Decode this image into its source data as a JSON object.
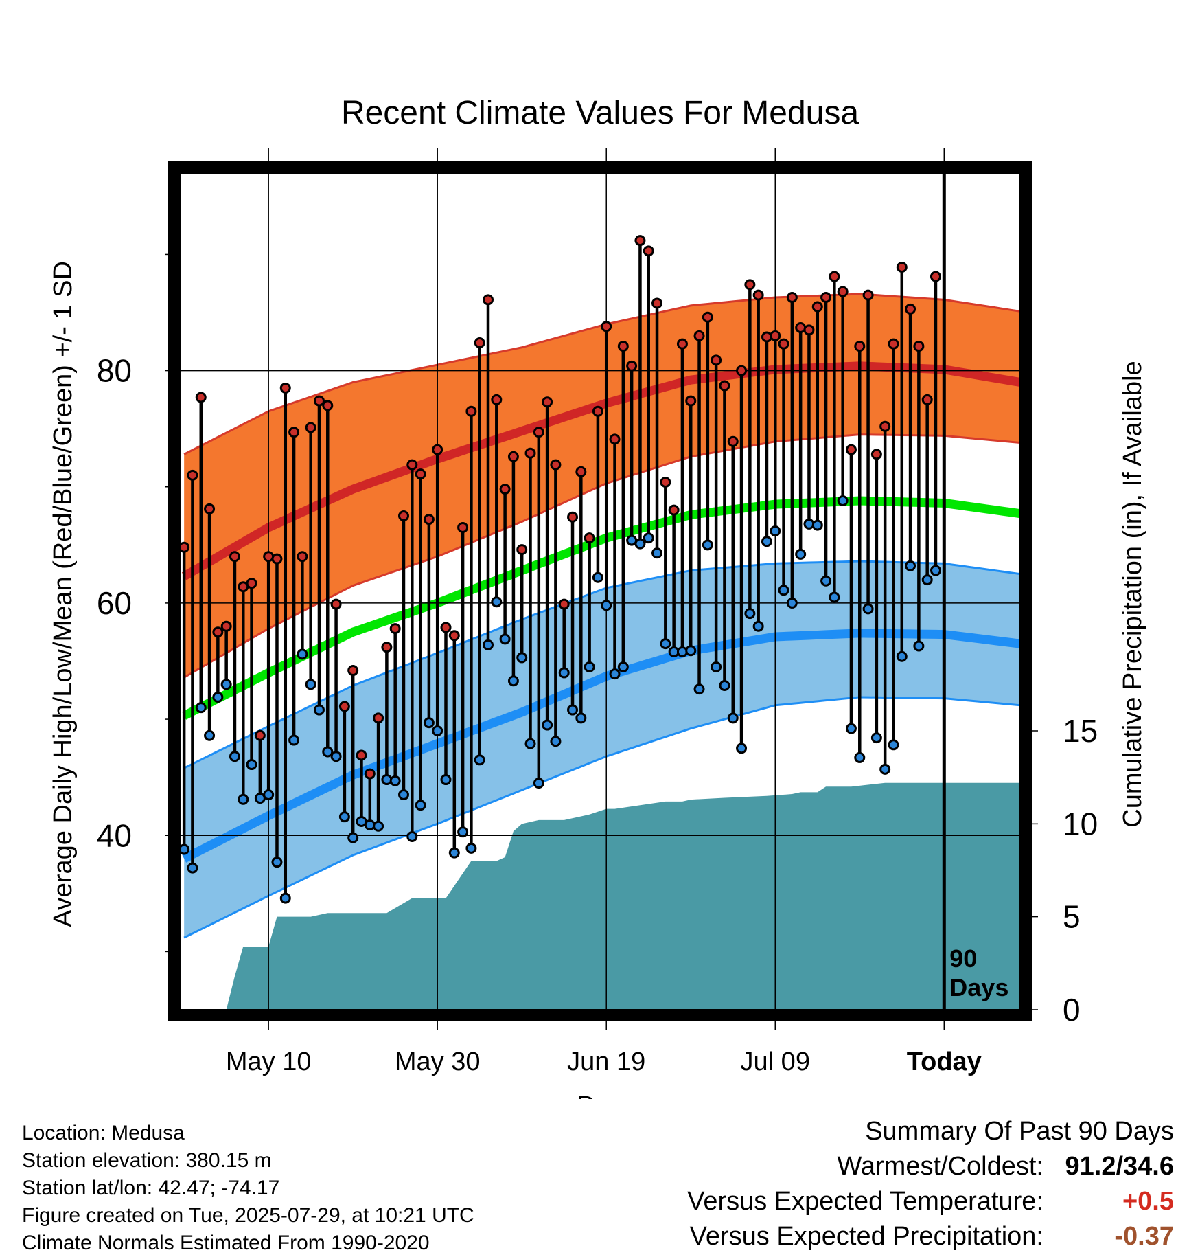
{
  "chart_data": {
    "type": "line",
    "title": "Recent Climate Values For Medusa",
    "xlabel": "Day",
    "ylabel": "Average Daily High/Low/Mean (Red/Blue/Green) +/- 1 SD",
    "y2label": "Cumulative Precipitation (in), If Available",
    "ylim": [
      25,
      97
    ],
    "y2lim": [
      0,
      45
    ],
    "xlim": [
      -90.5,
      9
    ],
    "x_units": "days relative to today (2025-07-29)",
    "y_ticks": [
      40,
      60,
      80
    ],
    "y2_ticks": [
      0,
      5,
      10,
      15
    ],
    "x_ticks": [
      {
        "x": -80,
        "label": "May 10"
      },
      {
        "x": -60,
        "label": "May 30"
      },
      {
        "x": -40,
        "label": "Jun 19"
      },
      {
        "x": -20,
        "label": "Jul 09"
      },
      {
        "x": 0,
        "label": "Today"
      }
    ],
    "today_marker": "90 Days",
    "colors": {
      "high_band": "#f4772e",
      "high_mean": "#d02626",
      "high_band_edge": "#d63a2b",
      "low_band": "#86c1e8",
      "low_mean": "#1e8ef5",
      "low_band_edge": "#1e8ef5",
      "mean": "#00e600",
      "precip": "#4a9aa5",
      "high_dot": "#c82f2a",
      "low_dot": "#2b85d8",
      "stem": "#000000"
    },
    "normals": {
      "x": [
        -90,
        -80,
        -70,
        -60,
        -50,
        -40,
        -30,
        -20,
        -10,
        0,
        9
      ],
      "high_mean": [
        62.3,
        66.5,
        69.8,
        72.4,
        74.8,
        77.2,
        79.2,
        80.1,
        80.4,
        80.1,
        79.0
      ],
      "high_sd_upper": [
        72.8,
        76.5,
        79.0,
        80.5,
        82.0,
        84.0,
        85.6,
        86.3,
        86.6,
        86.1,
        85.1
      ],
      "high_sd_lower": [
        53.6,
        57.8,
        61.5,
        64.0,
        67.0,
        70.3,
        72.6,
        73.9,
        74.5,
        74.4,
        73.8
      ],
      "mean": [
        50.3,
        54.0,
        57.5,
        60.0,
        62.8,
        65.6,
        67.6,
        68.5,
        68.8,
        68.6,
        67.7
      ],
      "low_mean": [
        38.0,
        41.7,
        45.2,
        47.9,
        50.6,
        53.7,
        55.9,
        57.1,
        57.4,
        57.3,
        56.5
      ],
      "low_sd_upper": [
        45.8,
        49.4,
        52.9,
        55.7,
        58.6,
        61.3,
        62.8,
        63.4,
        63.6,
        63.4,
        62.5
      ],
      "low_sd_lower": [
        31.2,
        34.8,
        38.3,
        41.0,
        43.9,
        46.8,
        49.2,
        51.2,
        51.9,
        51.8,
        51.2
      ]
    },
    "series": [
      {
        "name": "High",
        "x_start": -90,
        "values": [
          64.8,
          71.0,
          77.7,
          68.1,
          57.5,
          58.0,
          64.0,
          61.4,
          61.7,
          48.6,
          64.0,
          63.8,
          78.5,
          74.7,
          64.0,
          75.1,
          77.4,
          77.0,
          59.9,
          51.1,
          54.2,
          46.9,
          45.3,
          50.1,
          56.2,
          57.8,
          67.5,
          71.9,
          71.1,
          67.2,
          73.2,
          57.9,
          57.2,
          66.5,
          76.5,
          82.4,
          86.1,
          77.5,
          69.8,
          72.6,
          64.6,
          72.9,
          74.7,
          77.3,
          71.9,
          59.9,
          67.4,
          71.3,
          65.6,
          76.5,
          83.8,
          74.1,
          82.1,
          80.4,
          91.2,
          90.3,
          85.8,
          70.4,
          68.0,
          82.3,
          77.4,
          83.0,
          84.6,
          80.9,
          78.7,
          73.9,
          80.0,
          87.4,
          86.5,
          82.9,
          83.0,
          82.3,
          86.3,
          83.7,
          83.5,
          85.5,
          86.3,
          88.1,
          86.8,
          73.2,
          82.1,
          86.5,
          72.8,
          75.2,
          82.3,
          88.9,
          85.3,
          82.1,
          77.5,
          88.1
        ]
      },
      {
        "name": "Low",
        "x_start": -90,
        "values": [
          38.8,
          37.2,
          51.0,
          48.6,
          51.9,
          53.0,
          46.8,
          43.1,
          46.1,
          43.2,
          43.5,
          37.7,
          34.6,
          48.2,
          55.6,
          53.0,
          50.8,
          47.2,
          46.8,
          41.6,
          39.8,
          41.2,
          40.9,
          40.8,
          44.8,
          44.7,
          43.5,
          39.9,
          42.6,
          49.7,
          49.0,
          44.8,
          38.5,
          40.3,
          38.9,
          46.5,
          56.4,
          60.1,
          56.9,
          53.3,
          55.3,
          47.9,
          44.5,
          49.5,
          48.1,
          54.0,
          50.8,
          50.1,
          54.5,
          62.2,
          59.8,
          53.9,
          54.5,
          65.4,
          65.1,
          65.6,
          64.3,
          56.5,
          55.8,
          55.8,
          55.9,
          52.6,
          65.0,
          54.5,
          52.9,
          50.1,
          47.5,
          59.1,
          58.0,
          65.3,
          66.2,
          61.1,
          60.0,
          64.2,
          66.8,
          66.7,
          61.9,
          60.5,
          68.8,
          49.2,
          46.7,
          59.5,
          48.4,
          45.7,
          47.8,
          55.4,
          63.2,
          56.3,
          62.0,
          62.8
        ]
      },
      {
        "name": "Cumulative Precipitation",
        "x": [
          -90,
          -87,
          -86,
          -85,
          -84,
          -83,
          -82,
          -81,
          -80,
          -79,
          -78,
          -76,
          -75,
          -73,
          -71,
          -70,
          -69,
          -67,
          -66,
          -63,
          -60,
          -59,
          -56,
          -55,
          -54,
          -53,
          -52,
          -51,
          -50,
          -48,
          -45,
          -43,
          -42,
          -40,
          -39,
          -36,
          -33,
          -31,
          -30,
          -26,
          -21,
          -18,
          -17,
          -15,
          -14,
          -13,
          -12,
          -11,
          -7,
          -6,
          -2,
          0,
          9
        ],
        "values": [
          0,
          0,
          0,
          0,
          1.8,
          3.4,
          3.4,
          3.4,
          3.4,
          5.0,
          5.0,
          5.0,
          5.0,
          5.2,
          5.2,
          5.2,
          5.2,
          5.2,
          5.2,
          6.0,
          6.0,
          6.0,
          8.0,
          8.0,
          8.0,
          8.0,
          8.2,
          9.6,
          10.0,
          10.2,
          10.2,
          10.4,
          10.5,
          10.8,
          10.8,
          11.0,
          11.2,
          11.2,
          11.3,
          11.4,
          11.5,
          11.6,
          11.7,
          11.7,
          12.0,
          12.0,
          12.0,
          12.0,
          12.2,
          12.2,
          12.2,
          12.2,
          12.2
        ]
      }
    ]
  },
  "footer": {
    "location": "Location: Medusa",
    "elevation": "Station elevation: 380.15 m",
    "latlon": "Station lat/lon: 42.47; -74.17",
    "created": "Figure created on Tue, 2025-07-29, at 10:21 UTC",
    "normals": "Climate Normals Estimated From 1990-2020"
  },
  "summary": {
    "title": "Summary Of Past 90 Days",
    "warm_label": "Warmest/Coldest:",
    "warm_value": "91.2/34.6",
    "temp_label": "Versus Expected Temperature:",
    "temp_value": "+0.5",
    "temp_color": "#d42b20",
    "precip_label": "Versus Expected Precipitation:",
    "precip_value": "-0.37",
    "precip_color": "#a0522d"
  }
}
